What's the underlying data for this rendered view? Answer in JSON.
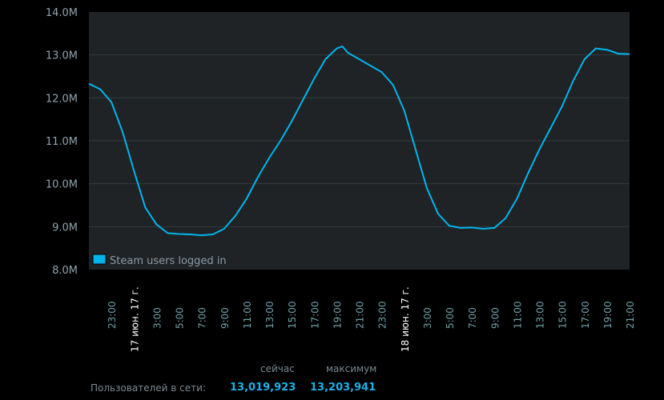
{
  "chart_data": {
    "type": "line",
    "title": "",
    "xlabel": "",
    "ylabel": "",
    "ylim": [
      8000000,
      14000000
    ],
    "y_ticks": [
      "8.0M",
      "9.0M",
      "10.0M",
      "11.0M",
      "12.0M",
      "13.0M",
      "14.0M"
    ],
    "x_tick_labels": [
      "23:00",
      "17 июн. 17 г.",
      "3:00",
      "5:00",
      "7:00",
      "9:00",
      "11:00",
      "13:00",
      "15:00",
      "17:00",
      "19:00",
      "21:00",
      "23:00",
      "18 июн. 17 г.",
      "3:00",
      "5:00",
      "7:00",
      "9:00",
      "11:00",
      "13:00",
      "15:00",
      "17:00",
      "19:00",
      "21:00"
    ],
    "grid": true,
    "legend_position": "bottom-left",
    "series": [
      {
        "name": "Steam users logged in",
        "color": "#00b4ee",
        "x": [
          "16 21:00",
          "16 22:00",
          "16 23:00",
          "17 00:00",
          "17 01:00",
          "17 02:00",
          "17 03:00",
          "17 04:00",
          "17 05:00",
          "17 06:00",
          "17 07:00",
          "17 08:00",
          "17 09:00",
          "17 10:00",
          "17 11:00",
          "17 12:00",
          "17 13:00",
          "17 14:00",
          "17 15:00",
          "17 16:00",
          "17 17:00",
          "17 18:00",
          "17 19:00",
          "17 19:30",
          "17 20:00",
          "17 21:00",
          "17 22:00",
          "17 23:00",
          "18 00:00",
          "18 01:00",
          "18 02:00",
          "18 03:00",
          "18 04:00",
          "18 05:00",
          "18 06:00",
          "18 07:00",
          "18 08:00",
          "18 09:00",
          "18 10:00",
          "18 11:00",
          "18 12:00",
          "18 13:00",
          "18 14:00",
          "18 15:00",
          "18 16:00",
          "18 17:00",
          "18 18:00",
          "18 19:00",
          "18 20:00",
          "18 21:00"
        ],
        "values": [
          12.33,
          12.2,
          11.9,
          11.2,
          10.3,
          9.45,
          9.05,
          8.85,
          8.83,
          8.82,
          8.8,
          8.82,
          8.95,
          9.25,
          9.65,
          10.15,
          10.6,
          11.0,
          11.45,
          11.95,
          12.45,
          12.9,
          13.15,
          13.2,
          13.05,
          12.9,
          12.75,
          12.6,
          12.3,
          11.7,
          10.8,
          9.9,
          9.3,
          9.02,
          8.97,
          8.98,
          8.95,
          8.97,
          9.2,
          9.65,
          10.25,
          10.8,
          11.3,
          11.8,
          12.4,
          12.9,
          13.15,
          13.12,
          13.03,
          13.02
        ],
        "value_unit": "M"
      }
    ]
  },
  "footer": {
    "now_label": "сейчас",
    "max_label": "максимум",
    "users_online_label": "Пользователей в сети:",
    "now_value": "13,019,923",
    "max_value": "13,203,941"
  }
}
